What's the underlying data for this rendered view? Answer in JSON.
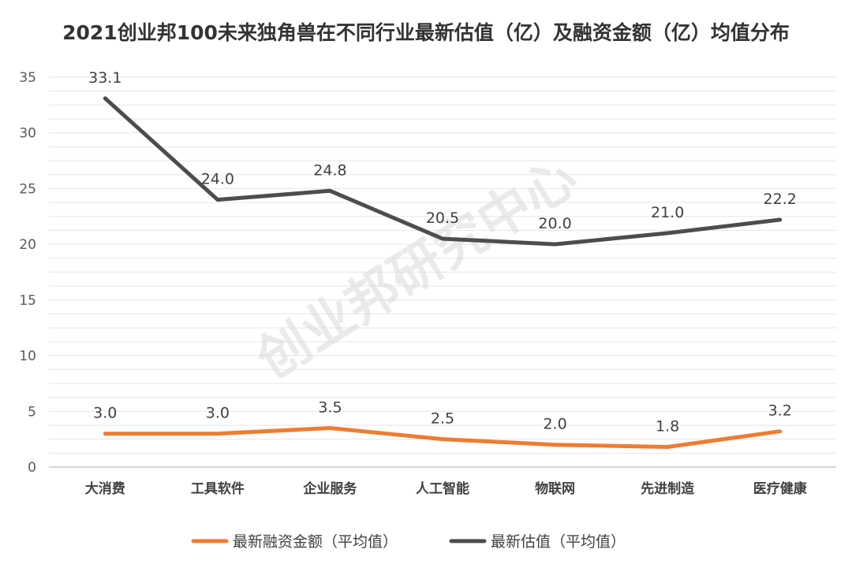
{
  "chart_data": {
    "type": "line",
    "title": "2021创业邦100未来独角兽在不同行业最新估值（亿）及融资金额（亿）均值分布",
    "categories": [
      "大消费",
      "工具软件",
      "企业服务",
      "人工智能",
      "物联网",
      "先进制造",
      "医疗健康"
    ],
    "ylim": [
      0,
      35
    ],
    "yticks": [
      0,
      5,
      10,
      15,
      20,
      25,
      30,
      35
    ],
    "grid": true,
    "legend_position": "bottom",
    "series": [
      {
        "name": "最新融资金额（平均值）",
        "color": "#ed7d31",
        "values": [
          3.0,
          3.0,
          3.5,
          2.5,
          2.0,
          1.8,
          3.2
        ],
        "labels": [
          "3.0",
          "3.0",
          "3.5",
          "2.5",
          "2.0",
          "1.8",
          "3.2"
        ]
      },
      {
        "name": "最新估值（平均值）",
        "color": "#4d4d4d",
        "values": [
          33.1,
          24.0,
          24.8,
          20.5,
          20.0,
          21.0,
          22.2
        ],
        "labels": [
          "33.1",
          "24.0",
          "24.8",
          "20.5",
          "20.0",
          "21.0",
          "22.2"
        ]
      }
    ],
    "watermark": "创业邦研究中心",
    "gridline_color": "#e6e6e6"
  }
}
